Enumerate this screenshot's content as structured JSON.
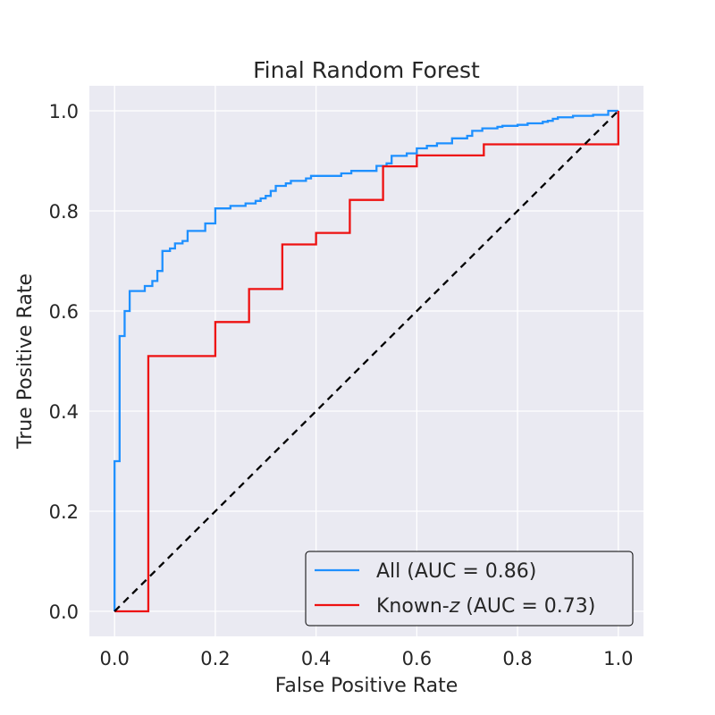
{
  "chart_data": {
    "type": "line",
    "title": "Final Random Forest",
    "xlabel": "False Positive Rate",
    "ylabel": "True Positive Rate",
    "xlim": [
      -0.05,
      1.05
    ],
    "ylim": [
      -0.05,
      1.05
    ],
    "xticks": [
      "0.0",
      "0.2",
      "0.4",
      "0.6",
      "0.8",
      "1.0"
    ],
    "yticks": [
      "0.0",
      "0.2",
      "0.4",
      "0.6",
      "0.8",
      "1.0"
    ],
    "grid": true,
    "legend_position": "lower-right",
    "series": [
      {
        "name": "All (AUC = 0.86)",
        "legend_prefix": "All",
        "legend_suffix": " (AUC = 0.86)",
        "color": "#1e90ff",
        "style": "steps",
        "x": [
          0.0,
          0.0,
          0.01,
          0.01,
          0.02,
          0.02,
          0.03,
          0.03,
          0.06,
          0.06,
          0.075,
          0.075,
          0.085,
          0.085,
          0.095,
          0.095,
          0.11,
          0.11,
          0.12,
          0.12,
          0.135,
          0.135,
          0.145,
          0.145,
          0.18,
          0.18,
          0.2,
          0.2,
          0.23,
          0.23,
          0.26,
          0.26,
          0.28,
          0.28,
          0.29,
          0.29,
          0.3,
          0.3,
          0.31,
          0.31,
          0.32,
          0.32,
          0.34,
          0.34,
          0.35,
          0.35,
          0.38,
          0.38,
          0.39,
          0.39,
          0.45,
          0.45,
          0.47,
          0.47,
          0.52,
          0.52,
          0.54,
          0.54,
          0.55,
          0.55,
          0.58,
          0.58,
          0.6,
          0.6,
          0.62,
          0.62,
          0.64,
          0.64,
          0.67,
          0.67,
          0.7,
          0.7,
          0.71,
          0.71,
          0.73,
          0.73,
          0.76,
          0.76,
          0.77,
          0.77,
          0.8,
          0.8,
          0.82,
          0.82,
          0.85,
          0.85,
          0.86,
          0.86,
          0.87,
          0.87,
          0.88,
          0.88,
          0.91,
          0.91,
          0.95,
          0.95,
          0.98,
          0.98,
          1.0,
          1.0
        ],
        "y": [
          0.0,
          0.3,
          0.3,
          0.55,
          0.55,
          0.6,
          0.6,
          0.64,
          0.64,
          0.65,
          0.65,
          0.66,
          0.66,
          0.68,
          0.68,
          0.72,
          0.72,
          0.725,
          0.725,
          0.735,
          0.735,
          0.74,
          0.74,
          0.76,
          0.76,
          0.775,
          0.775,
          0.805,
          0.805,
          0.81,
          0.81,
          0.815,
          0.815,
          0.82,
          0.82,
          0.825,
          0.825,
          0.83,
          0.83,
          0.84,
          0.84,
          0.85,
          0.85,
          0.855,
          0.855,
          0.86,
          0.86,
          0.865,
          0.865,
          0.87,
          0.87,
          0.875,
          0.875,
          0.88,
          0.88,
          0.89,
          0.89,
          0.895,
          0.895,
          0.91,
          0.91,
          0.915,
          0.915,
          0.925,
          0.925,
          0.93,
          0.93,
          0.935,
          0.935,
          0.945,
          0.945,
          0.95,
          0.95,
          0.96,
          0.96,
          0.965,
          0.965,
          0.968,
          0.968,
          0.97,
          0.97,
          0.972,
          0.972,
          0.975,
          0.975,
          0.978,
          0.978,
          0.98,
          0.98,
          0.984,
          0.984,
          0.987,
          0.987,
          0.99,
          0.99,
          0.992,
          0.992,
          1.0,
          1.0,
          1.0
        ]
      },
      {
        "name": "Known-z (AUC = 0.73)",
        "legend_prefix": "Known-",
        "legend_italic": "z",
        "legend_suffix": " (AUC = 0.73)",
        "color": "#ee1111",
        "style": "steps",
        "x": [
          0.0,
          0.067,
          0.067,
          0.2,
          0.2,
          0.267,
          0.267,
          0.333,
          0.333,
          0.4,
          0.4,
          0.467,
          0.467,
          0.533,
          0.533,
          0.6,
          0.6,
          0.733,
          0.733,
          1.0,
          1.0
        ],
        "y": [
          0.0,
          0.0,
          0.51,
          0.51,
          0.578,
          0.578,
          0.644,
          0.644,
          0.733,
          0.733,
          0.756,
          0.756,
          0.822,
          0.822,
          0.889,
          0.889,
          0.911,
          0.911,
          0.933,
          0.933,
          1.0
        ]
      }
    ],
    "reference_line": {
      "x": [
        0,
        1
      ],
      "y": [
        0,
        1
      ],
      "color": "#000000",
      "dashed": true
    }
  }
}
